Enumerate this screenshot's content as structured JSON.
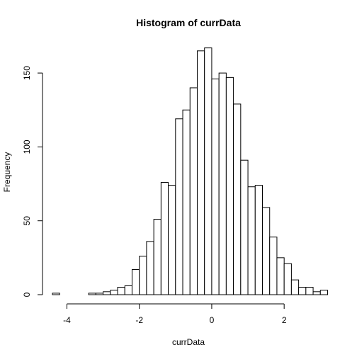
{
  "chart_data": {
    "type": "bar",
    "title": "Histogram of currData",
    "xlabel": "currData",
    "ylabel": "Frequency",
    "bin_width": 0.2,
    "bin_start": -4.4,
    "x_ticks": [
      "-4",
      "-2",
      "0",
      "2"
    ],
    "x_tick_values": [
      -4,
      -2,
      0,
      2
    ],
    "y_ticks": [
      "0",
      "50",
      "100",
      "150"
    ],
    "y_tick_values": [
      0,
      50,
      100,
      150
    ],
    "values": [
      1,
      0,
      0,
      0,
      0,
      1,
      1,
      2,
      3,
      5,
      6,
      17,
      26,
      36,
      51,
      76,
      74,
      119,
      125,
      140,
      165,
      167,
      146,
      150,
      147,
      129,
      91,
      73,
      74,
      59,
      39,
      25,
      21,
      10,
      5,
      5,
      2,
      3
    ],
    "xlim": [
      -4.4,
      3.2
    ],
    "ylim": [
      0,
      167
    ]
  }
}
